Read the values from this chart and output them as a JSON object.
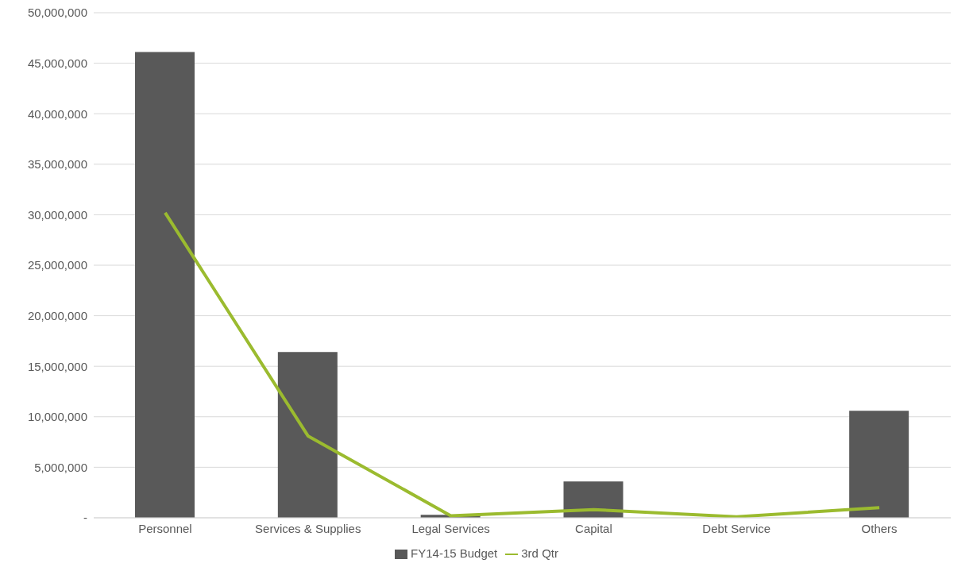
{
  "chart_data": {
    "type": "bar",
    "categories": [
      "Personnel",
      "Services & Supplies",
      "Legal Services",
      "Capital",
      "Debt Service",
      "Others"
    ],
    "series": [
      {
        "name": "FY14-15 Budget",
        "color": "#595959",
        "values": [
          46100000,
          16400000,
          300000,
          3600000,
          0,
          10600000
        ]
      },
      {
        "name": "3rd Qtr",
        "type": "line",
        "color": "#9bbb2f",
        "values": [
          30200000,
          8100000,
          200000,
          800000,
          100000,
          1000000
        ]
      }
    ],
    "ylim": [
      0,
      50000000
    ],
    "yticks": [
      {
        "value": 0,
        "label": "-"
      },
      {
        "value": 5000000,
        "label": "5,000,000"
      },
      {
        "value": 10000000,
        "label": "10,000,000"
      },
      {
        "value": 15000000,
        "label": "15,000,000"
      },
      {
        "value": 20000000,
        "label": "20,000,000"
      },
      {
        "value": 25000000,
        "label": "25,000,000"
      },
      {
        "value": 30000000,
        "label": "30,000,000"
      },
      {
        "value": 35000000,
        "label": "35,000,000"
      },
      {
        "value": 40000000,
        "label": "40,000,000"
      },
      {
        "value": 45000000,
        "label": "45,000,000"
      },
      {
        "value": 50000000,
        "label": "50,000,000"
      }
    ],
    "grid": "y",
    "legend": "bottom",
    "marker": "none",
    "line_style": "solid"
  }
}
